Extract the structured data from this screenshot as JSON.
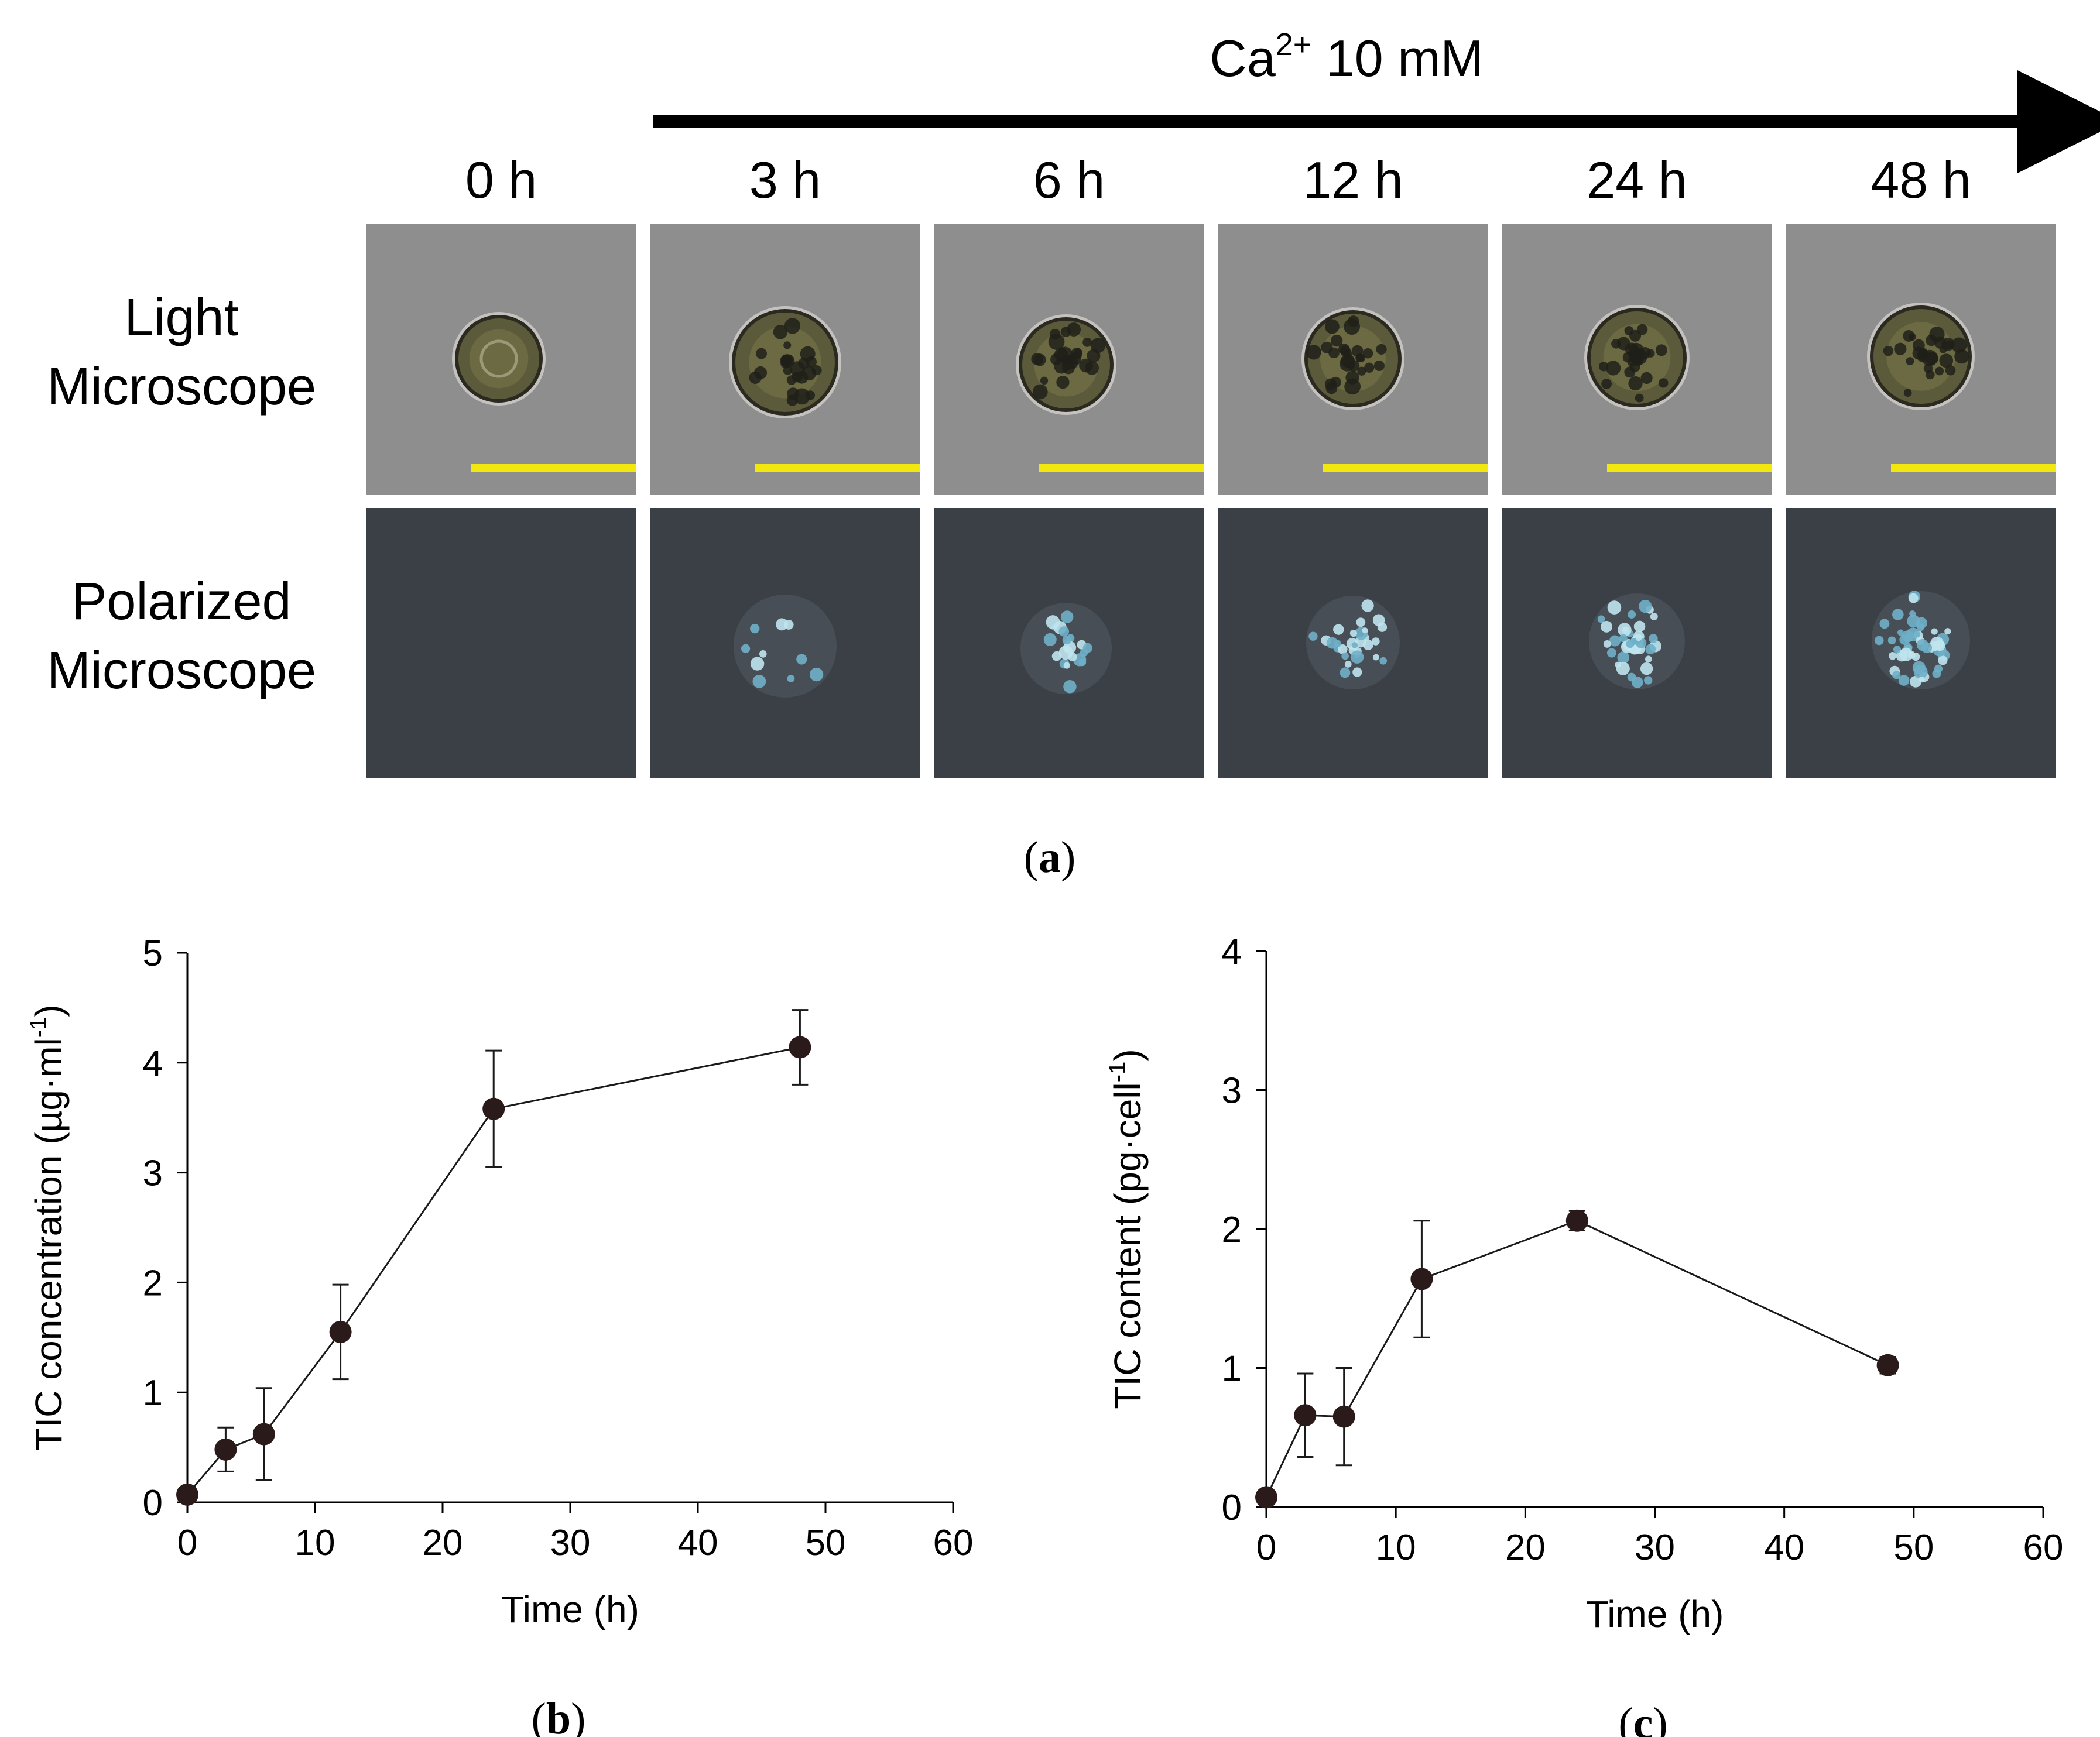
{
  "panel_a": {
    "treatment_label": "Ca",
    "treatment_sup": "2+",
    "treatment_rest": " 10 mM",
    "time_labels": [
      "0 h",
      "3 h",
      "6 h",
      "12 h",
      "24 h",
      "48 h"
    ],
    "row_labels": [
      [
        "Light",
        "Microscope"
      ],
      [
        "Polarized",
        "Microscope"
      ]
    ],
    "caption_open": "(",
    "caption_letter": "a",
    "caption_close": ")",
    "colors": {
      "light_bg": "#8e8e8e",
      "polar_bg": "#3b4047",
      "scale_bar": "#f2e80e"
    }
  },
  "chart_data": [
    {
      "type": "line",
      "caption": "b",
      "xlabel": "Time (h)",
      "ylabel": "TIC concentration (µg·ml",
      "ylabel_sup": "-1",
      "ylabel_end": ")",
      "xlim": [
        0,
        60
      ],
      "ylim": [
        0,
        5
      ],
      "xticks": [
        0,
        10,
        20,
        30,
        40,
        50,
        60
      ],
      "yticks": [
        0,
        1,
        2,
        3,
        4,
        5
      ],
      "x": [
        0,
        3,
        6,
        12,
        24,
        48
      ],
      "y": [
        0.07,
        0.48,
        0.62,
        1.55,
        3.58,
        4.14
      ],
      "err": [
        0.03,
        0.2,
        0.42,
        0.43,
        0.53,
        0.34
      ]
    },
    {
      "type": "line",
      "caption": "c",
      "xlabel": "Time (h)",
      "ylabel": "TIC content (pg·cell",
      "ylabel_sup": "-1",
      "ylabel_end": ")",
      "xlim": [
        0,
        60
      ],
      "ylim": [
        0,
        4
      ],
      "xticks": [
        0,
        10,
        20,
        30,
        40,
        50,
        60
      ],
      "yticks": [
        0,
        1,
        2,
        3,
        4
      ],
      "x": [
        0,
        3,
        6,
        12,
        24,
        48
      ],
      "y": [
        0.07,
        0.66,
        0.65,
        1.64,
        2.06,
        1.02
      ],
      "err": [
        0.03,
        0.3,
        0.35,
        0.42,
        0.07,
        0.06
      ]
    }
  ]
}
